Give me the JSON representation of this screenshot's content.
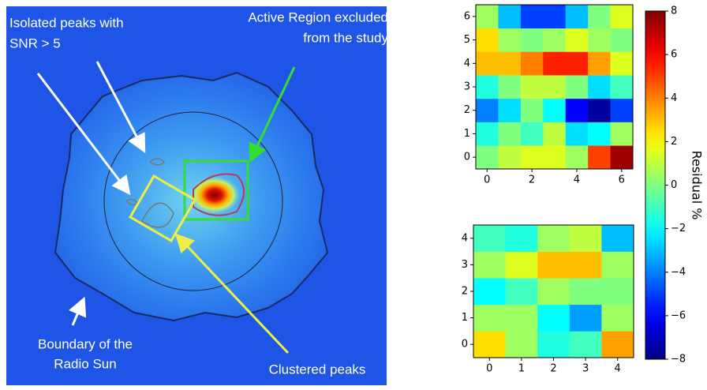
{
  "image": {
    "annotations": [
      {
        "lines": [
          "Isolated peaks with",
          "SNR > 5"
        ]
      },
      {
        "lines": [
          "Active Region excluded",
          "from the study"
        ]
      },
      {
        "lines": [
          "Boundary of the",
          "Radio Sun"
        ]
      },
      {
        "lines": [
          "Clustered peaks"
        ]
      }
    ]
  },
  "chart_data": [
    {
      "type": "heatmap",
      "values": [
        [
          0,
          1,
          1.5,
          1.5,
          0.5,
          5,
          7.5
        ],
        [
          -1.5,
          0,
          -1,
          1,
          -2.5,
          -2,
          0.5
        ],
        [
          -4,
          -2.5,
          0,
          -2,
          -6,
          -7.5,
          -5
        ],
        [
          -1.5,
          0,
          1,
          1,
          0,
          -2.5,
          -1
        ],
        [
          3,
          3,
          4,
          5.5,
          5.5,
          3.5,
          1.5
        ],
        [
          2.5,
          0.5,
          0,
          0.5,
          1.5,
          0.5,
          0
        ],
        [
          0.5,
          -3,
          -5,
          -5,
          -3,
          0,
          1.5
        ]
      ],
      "xlim": [
        -0.5,
        6.5
      ],
      "ylim": [
        -0.5,
        6.5
      ],
      "xticks": [
        0,
        2,
        4,
        6
      ],
      "yticks": [
        0,
        1,
        2,
        3,
        4,
        5,
        6
      ]
    },
    {
      "type": "heatmap",
      "values": [
        [
          2.5,
          0.5,
          -1.5,
          -1,
          3.5
        ],
        [
          0.5,
          0.5,
          -2,
          -3.5,
          0.5
        ],
        [
          -2,
          -1,
          0.5,
          0,
          0
        ],
        [
          0.5,
          1.5,
          3,
          3,
          0.5
        ],
        [
          -1,
          -1.5,
          0.5,
          1,
          -3
        ]
      ],
      "xlim": [
        -0.5,
        4.5
      ],
      "ylim": [
        -0.5,
        4.5
      ],
      "xticks": [
        0,
        1,
        2,
        3,
        4
      ],
      "yticks": [
        0,
        1,
        2,
        3,
        4
      ]
    },
    {
      "type": "colorbar",
      "label": "Residual %",
      "colormap": "jet",
      "lim": [
        -8,
        8
      ],
      "ticks": [
        {
          "value": -8,
          "label": "−8"
        },
        {
          "value": -6,
          "label": "−6"
        },
        {
          "value": -4,
          "label": "−4"
        },
        {
          "value": -2,
          "label": "−2"
        },
        0,
        2,
        4,
        6,
        8
      ]
    }
  ]
}
